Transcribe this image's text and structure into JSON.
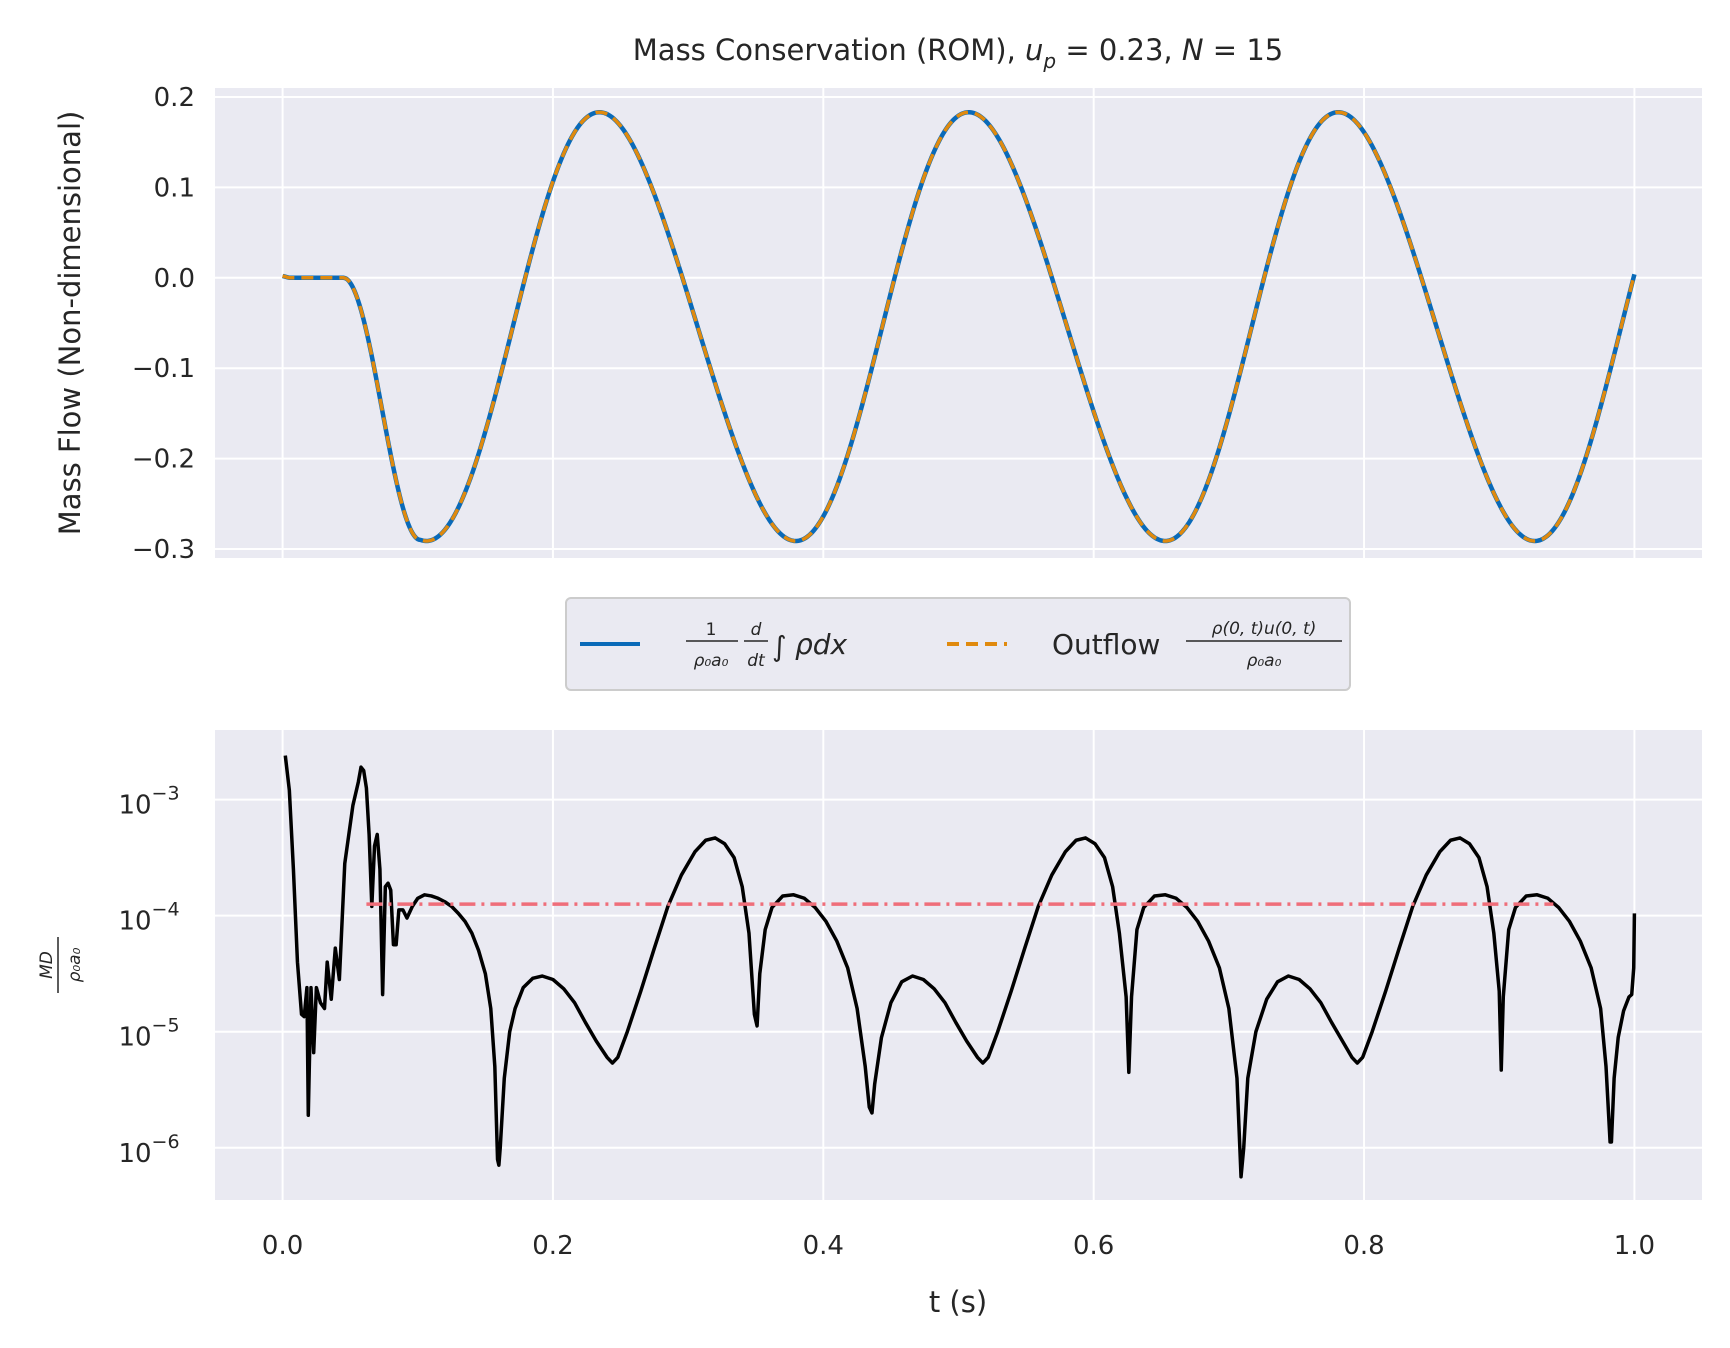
{
  "chart_data": [
    {
      "type": "line",
      "title_text": "Mass Conservation (ROM), ",
      "title_math_1": "u",
      "title_math_1_sub": "p",
      "title_math_1_value": " = 0.23, ",
      "title_math_2": "N",
      "title_math_2_value": " = 15",
      "ylabel": "Mass Flow (Non-dimensional)",
      "xlabel": "",
      "xlim": [
        -0.05,
        1.05
      ],
      "ylim": [
        -0.31,
        0.21
      ],
      "y_ticks": [
        0.2,
        0.1,
        0.0,
        -0.1,
        -0.2,
        -0.3
      ],
      "y_tick_labels": [
        "0.2",
        "0.1",
        "0.0",
        "−0.1",
        "−0.2",
        "−0.3"
      ],
      "grid": true,
      "series": [
        {
          "name": "(1/ρ₀a₀) d/dt ∫ ρ dx",
          "color": "#0a6ab8",
          "style": "solid",
          "t0": 0.05,
          "period": 0.2733,
          "amplitude": 0.236,
          "offset": -0.054,
          "points": [
            [
              0.0,
              0.002
            ],
            [
              0.005,
              0.0
            ],
            [
              0.05,
              0.0
            ]
          ]
        },
        {
          "name": "Outflow ρ(0,t)u(0,t)/ρ₀a₀",
          "color": "#e08a0e",
          "style": "dashed"
        }
      ]
    },
    {
      "type": "line",
      "xlabel": "t (s)",
      "ylabel": "MD/ρ₀a₀",
      "xlim": [
        -0.05,
        1.05
      ],
      "ylim_log10": [
        -6.45,
        -2.4
      ],
      "log_scale_y": true,
      "grid": true,
      "x_ticks": [
        0.0,
        0.2,
        0.4,
        0.6,
        0.8,
        1.0
      ],
      "x_tick_labels": [
        "0.0",
        "0.2",
        "0.4",
        "0.6",
        "0.8",
        "1.0"
      ],
      "y_ticks_exp": [
        -3,
        -4,
        -5,
        -6
      ],
      "y_tick_base": "10",
      "y_tick_exps": [
        "−3",
        "−4",
        "−5",
        "−6"
      ],
      "series": [
        {
          "name": "MD",
          "color": "#000000",
          "style": "solid",
          "points": [
            [
              0.002,
              -2.62
            ],
            [
              0.005,
              -2.92
            ],
            [
              0.008,
              -3.6
            ],
            [
              0.011,
              -4.4
            ],
            [
              0.014,
              -4.85
            ],
            [
              0.016,
              -4.87
            ],
            [
              0.018,
              -4.62
            ],
            [
              0.019,
              -5.72
            ],
            [
              0.021,
              -4.62
            ],
            [
              0.023,
              -5.18
            ],
            [
              0.025,
              -4.62
            ],
            [
              0.028,
              -4.75
            ],
            [
              0.031,
              -4.8
            ],
            [
              0.033,
              -4.4
            ],
            [
              0.036,
              -4.72
            ],
            [
              0.039,
              -4.28
            ],
            [
              0.042,
              -4.55
            ],
            [
              0.046,
              -3.55
            ],
            [
              0.052,
              -3.05
            ],
            [
              0.056,
              -2.85
            ],
            [
              0.058,
              -2.72
            ],
            [
              0.06,
              -2.75
            ],
            [
              0.062,
              -2.9
            ],
            [
              0.064,
              -3.3
            ],
            [
              0.066,
              -3.92
            ],
            [
              0.068,
              -3.4
            ],
            [
              0.07,
              -3.3
            ],
            [
              0.072,
              -3.6
            ],
            [
              0.074,
              -4.68
            ],
            [
              0.076,
              -3.75
            ],
            [
              0.078,
              -3.72
            ],
            [
              0.08,
              -3.78
            ],
            [
              0.082,
              -4.25
            ],
            [
              0.084,
              -4.25
            ],
            [
              0.086,
              -3.95
            ],
            [
              0.089,
              -3.95
            ],
            [
              0.092,
              -4.02
            ],
            [
              0.096,
              -3.92
            ],
            [
              0.1,
              -3.85
            ],
            [
              0.105,
              -3.82
            ],
            [
              0.11,
              -3.83
            ],
            [
              0.115,
              -3.85
            ],
            [
              0.12,
              -3.88
            ],
            [
              0.125,
              -3.92
            ],
            [
              0.13,
              -3.98
            ],
            [
              0.135,
              -4.05
            ],
            [
              0.14,
              -4.15
            ],
            [
              0.145,
              -4.3
            ],
            [
              0.15,
              -4.5
            ],
            [
              0.154,
              -4.8
            ],
            [
              0.157,
              -5.3
            ],
            [
              0.159,
              -6.1
            ],
            [
              0.16,
              -6.15
            ],
            [
              0.161,
              -6.0
            ],
            [
              0.164,
              -5.4
            ],
            [
              0.168,
              -5.0
            ],
            [
              0.172,
              -4.8
            ],
            [
              0.178,
              -4.62
            ],
            [
              0.185,
              -4.54
            ],
            [
              0.192,
              -4.52
            ],
            [
              0.2,
              -4.55
            ],
            [
              0.208,
              -4.63
            ],
            [
              0.216,
              -4.75
            ],
            [
              0.224,
              -4.92
            ],
            [
              0.232,
              -5.08
            ],
            [
              0.24,
              -5.22
            ],
            [
              0.244,
              -5.27
            ],
            [
              0.248,
              -5.22
            ],
            [
              0.255,
              -5.0
            ],
            [
              0.265,
              -4.65
            ],
            [
              0.275,
              -4.28
            ],
            [
              0.285,
              -3.92
            ],
            [
              0.295,
              -3.65
            ],
            [
              0.305,
              -3.45
            ],
            [
              0.313,
              -3.35
            ],
            [
              0.32,
              -3.33
            ],
            [
              0.327,
              -3.38
            ],
            [
              0.334,
              -3.5
            ],
            [
              0.34,
              -3.75
            ],
            [
              0.345,
              -4.15
            ],
            [
              0.349,
              -4.85
            ],
            [
              0.351,
              -4.95
            ],
            [
              0.353,
              -4.5
            ],
            [
              0.357,
              -4.12
            ],
            [
              0.362,
              -3.93
            ],
            [
              0.37,
              -3.83
            ],
            [
              0.378,
              -3.82
            ],
            [
              0.386,
              -3.85
            ],
            [
              0.394,
              -3.93
            ],
            [
              0.402,
              -4.05
            ],
            [
              0.41,
              -4.22
            ],
            [
              0.418,
              -4.45
            ],
            [
              0.425,
              -4.8
            ],
            [
              0.431,
              -5.3
            ],
            [
              0.434,
              -5.65
            ],
            [
              0.436,
              -5.7
            ],
            [
              0.438,
              -5.45
            ],
            [
              0.443,
              -5.05
            ],
            [
              0.45,
              -4.75
            ],
            [
              0.458,
              -4.57
            ],
            [
              0.466,
              -4.52
            ],
            [
              0.474,
              -4.55
            ],
            [
              0.482,
              -4.63
            ],
            [
              0.49,
              -4.75
            ],
            [
              0.498,
              -4.92
            ],
            [
              0.506,
              -5.08
            ],
            [
              0.514,
              -5.22
            ],
            [
              0.518,
              -5.27
            ],
            [
              0.522,
              -5.22
            ],
            [
              0.529,
              -5.0
            ],
            [
              0.539,
              -4.65
            ],
            [
              0.549,
              -4.28
            ],
            [
              0.559,
              -3.92
            ],
            [
              0.569,
              -3.65
            ],
            [
              0.579,
              -3.45
            ],
            [
              0.587,
              -3.35
            ],
            [
              0.594,
              -3.33
            ],
            [
              0.601,
              -3.38
            ],
            [
              0.608,
              -3.5
            ],
            [
              0.614,
              -3.75
            ],
            [
              0.619,
              -4.15
            ],
            [
              0.624,
              -4.7
            ],
            [
              0.626,
              -5.35
            ],
            [
              0.628,
              -4.7
            ],
            [
              0.632,
              -4.12
            ],
            [
              0.637,
              -3.93
            ],
            [
              0.645,
              -3.83
            ],
            [
              0.653,
              -3.82
            ],
            [
              0.661,
              -3.85
            ],
            [
              0.669,
              -3.93
            ],
            [
              0.677,
              -4.05
            ],
            [
              0.685,
              -4.22
            ],
            [
              0.693,
              -4.45
            ],
            [
              0.7,
              -4.8
            ],
            [
              0.706,
              -5.4
            ],
            [
              0.709,
              -6.25
            ],
            [
              0.711,
              -6.0
            ],
            [
              0.714,
              -5.4
            ],
            [
              0.72,
              -5.0
            ],
            [
              0.728,
              -4.72
            ],
            [
              0.736,
              -4.57
            ],
            [
              0.744,
              -4.52
            ],
            [
              0.752,
              -4.55
            ],
            [
              0.76,
              -4.63
            ],
            [
              0.768,
              -4.75
            ],
            [
              0.776,
              -4.92
            ],
            [
              0.784,
              -5.08
            ],
            [
              0.791,
              -5.22
            ],
            [
              0.795,
              -5.27
            ],
            [
              0.799,
              -5.22
            ],
            [
              0.806,
              -5.0
            ],
            [
              0.816,
              -4.65
            ],
            [
              0.826,
              -4.28
            ],
            [
              0.836,
              -3.92
            ],
            [
              0.846,
              -3.65
            ],
            [
              0.856,
              -3.45
            ],
            [
              0.864,
              -3.35
            ],
            [
              0.871,
              -3.33
            ],
            [
              0.878,
              -3.38
            ],
            [
              0.885,
              -3.5
            ],
            [
              0.891,
              -3.75
            ],
            [
              0.896,
              -4.15
            ],
            [
              0.9,
              -4.65
            ],
            [
              0.9015,
              -5.33
            ],
            [
              0.903,
              -4.7
            ],
            [
              0.907,
              -4.12
            ],
            [
              0.912,
              -3.93
            ],
            [
              0.92,
              -3.83
            ],
            [
              0.928,
              -3.82
            ],
            [
              0.936,
              -3.85
            ],
            [
              0.944,
              -3.93
            ],
            [
              0.952,
              -4.05
            ],
            [
              0.96,
              -4.22
            ],
            [
              0.968,
              -4.45
            ],
            [
              0.975,
              -4.8
            ],
            [
              0.979,
              -5.3
            ],
            [
              0.982,
              -5.95
            ],
            [
              0.983,
              -5.95
            ],
            [
              0.985,
              -5.4
            ],
            [
              0.988,
              -5.05
            ],
            [
              0.992,
              -4.82
            ],
            [
              0.996,
              -4.7
            ],
            [
              0.998,
              -4.68
            ],
            [
              0.9995,
              -4.45
            ],
            [
              1.0,
              -3.98
            ]
          ]
        },
        {
          "name": "mean",
          "color": "#ef6e7a",
          "style": "dashdot",
          "x_range": [
            0.062,
            0.94
          ],
          "y_log10": -3.9
        }
      ]
    }
  ],
  "legend": {
    "placement": "center",
    "entry_1_frac_num": "1",
    "entry_1_frac_den": "ρ₀a₀",
    "entry_1_d_num": "d",
    "entry_1_d_den": "dt",
    "entry_1_integral": "∫",
    "entry_1_rest": "ρdx",
    "entry_2_prefix": "Outflow ",
    "entry_2_num": "ρ(0, t)u(0, t)",
    "entry_2_den": "ρ₀a₀"
  },
  "colors": {
    "axes_bg": "#eaeaf2",
    "grid": "#ffffff",
    "text": "#262626"
  }
}
